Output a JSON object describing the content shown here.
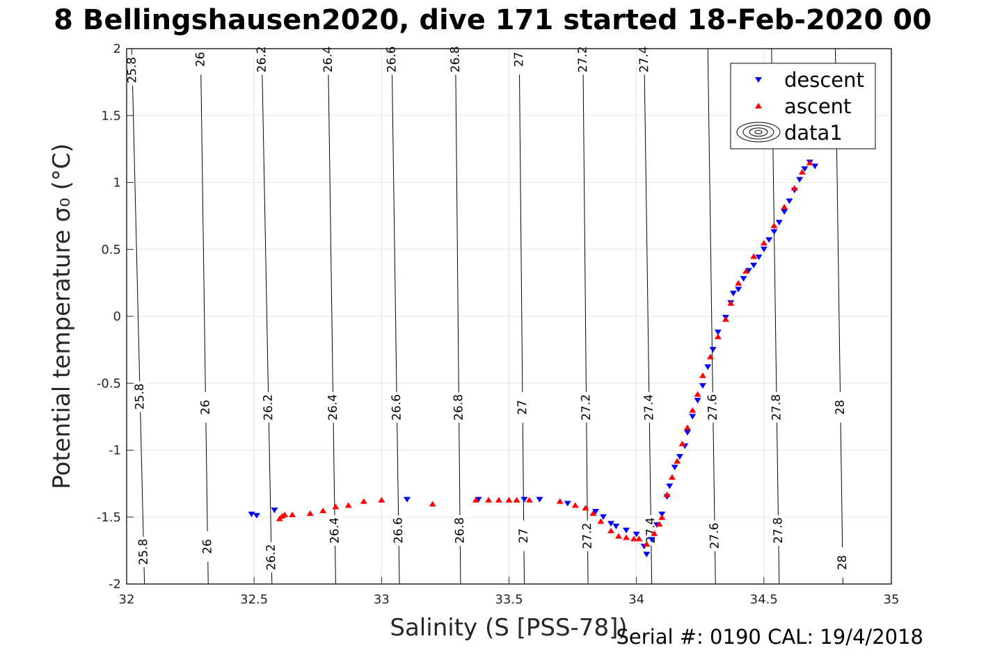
{
  "title": "8 Bellingshausen2020, dive 171 started 18-Feb-2020 00",
  "footer": "Serial #: 0190  CAL: 19/4/2018",
  "colors": {
    "descent": "#0000ff",
    "ascent": "#ff0000",
    "contour": "#000000",
    "grid": "#e6e6e6"
  },
  "chart_data": {
    "type": "scatter",
    "xlabel": "Salinity (S [PSS-78])",
    "ylabel": "Potential temperature σ₀ (°C)",
    "xlim": [
      32,
      35
    ],
    "ylim": [
      -2,
      2
    ],
    "xticks": [
      32,
      32.5,
      33,
      33.5,
      34,
      34.5,
      35
    ],
    "yticks": [
      -2,
      -1.5,
      -1,
      -0.5,
      0,
      0.5,
      1,
      1.5,
      2
    ],
    "xtick_labels": [
      "32",
      "32.5",
      "33",
      "33.5",
      "34",
      "34.5",
      "35"
    ],
    "ytick_labels": [
      "-2",
      "-1.5",
      "-1",
      "-0.5",
      "0",
      "0.5",
      "1",
      "1.5",
      "2"
    ],
    "grid": true,
    "legend_position": "top-right",
    "legend": [
      "descent",
      "ascent",
      "data1"
    ],
    "contours": [
      {
        "level": "25.8",
        "s_at_neg2": 32.07,
        "s_at_2": 32.02
      },
      {
        "level": "26",
        "s_at_neg2": 32.32,
        "s_at_2": 32.29
      },
      {
        "level": "26.2",
        "s_at_neg2": 32.57,
        "s_at_2": 32.53
      },
      {
        "level": "26.4",
        "s_at_neg2": 32.82,
        "s_at_2": 32.79
      },
      {
        "level": "26.6",
        "s_at_neg2": 33.07,
        "s_at_2": 33.04
      },
      {
        "level": "26.8",
        "s_at_neg2": 33.31,
        "s_at_2": 33.29
      },
      {
        "level": "27",
        "s_at_neg2": 33.56,
        "s_at_2": 33.54
      },
      {
        "level": "27.2",
        "s_at_neg2": 33.81,
        "s_at_2": 33.79
      },
      {
        "level": "27.4",
        "s_at_neg2": 34.06,
        "s_at_2": 34.03
      },
      {
        "level": "27.6",
        "s_at_neg2": 34.31,
        "s_at_2": 34.28
      },
      {
        "level": "27.8",
        "s_at_neg2": 34.56,
        "s_at_2": 34.53
      },
      {
        "level": "28",
        "s_at_neg2": 34.81,
        "s_at_2": 34.78
      }
    ],
    "contour_labels": [
      {
        "level": "25.8",
        "at": [
          0.35,
          0.06,
          0.96
        ]
      },
      {
        "level": "26",
        "at": [
          0.33,
          0.07,
          0.98
        ]
      },
      {
        "level": "26.2",
        "at": [
          0.33,
          0.05,
          0.98
        ]
      },
      {
        "level": "26.4",
        "at": [
          0.33,
          0.1,
          0.98
        ]
      },
      {
        "level": "26.6",
        "at": [
          0.33,
          0.1,
          0.98
        ]
      },
      {
        "level": "26.8",
        "at": [
          0.33,
          0.1,
          0.98
        ]
      },
      {
        "level": "27",
        "at": [
          0.33,
          0.09,
          0.98
        ]
      },
      {
        "level": "27.2",
        "at": [
          0.33,
          0.09,
          0.98
        ]
      },
      {
        "level": "27.4",
        "at": [
          0.33,
          0.1,
          0.98
        ]
      },
      {
        "level": "27.6",
        "at": [
          0.33,
          0.09
        ]
      },
      {
        "level": "27.8",
        "at": [
          0.33,
          0.1
        ]
      },
      {
        "level": "28",
        "at": [
          0.33,
          0.04,
          0.9
        ]
      }
    ],
    "series": [
      {
        "name": "descent",
        "marker": "triangle-down",
        "x": [
          32.49,
          32.51,
          32.58,
          33.1,
          33.38,
          33.56,
          33.62,
          33.73,
          33.84,
          33.87,
          33.9,
          33.92,
          33.96,
          34.0,
          34.03,
          34.04,
          34.06,
          34.08,
          34.1,
          34.12,
          34.13,
          34.15,
          34.17,
          34.19,
          34.2,
          34.22,
          34.24,
          34.26,
          34.28,
          34.3,
          34.32,
          34.35,
          34.37,
          34.38,
          34.4,
          34.42,
          34.44,
          34.46,
          34.48,
          34.5,
          34.52,
          34.54,
          34.56,
          34.58,
          34.6,
          34.62,
          34.64,
          34.66,
          34.68,
          34.7
        ],
        "y": [
          -1.48,
          -1.49,
          -1.45,
          -1.37,
          -1.37,
          -1.37,
          -1.37,
          -1.4,
          -1.46,
          -1.5,
          -1.55,
          -1.57,
          -1.6,
          -1.63,
          -1.72,
          -1.78,
          -1.67,
          -1.56,
          -1.48,
          -1.35,
          -1.27,
          -1.13,
          -1.05,
          -0.97,
          -0.87,
          -0.75,
          -0.63,
          -0.52,
          -0.38,
          -0.25,
          -0.12,
          -0.01,
          0.1,
          0.17,
          0.2,
          0.28,
          0.34,
          0.38,
          0.44,
          0.5,
          0.57,
          0.63,
          0.7,
          0.78,
          0.86,
          0.94,
          1.02,
          1.1,
          1.15,
          1.12
        ]
      },
      {
        "name": "ascent",
        "marker": "triangle-up",
        "x": [
          32.6,
          32.61,
          32.62,
          32.65,
          32.72,
          32.77,
          32.82,
          32.87,
          32.93,
          33.0,
          33.2,
          33.37,
          33.42,
          33.46,
          33.5,
          33.53,
          33.58,
          33.7,
          33.76,
          33.8,
          33.83,
          33.86,
          33.9,
          33.93,
          33.96,
          33.99,
          34.01,
          34.04,
          34.07,
          34.09,
          34.1,
          34.12,
          34.14,
          34.16,
          34.18,
          34.2,
          34.22,
          34.24,
          34.26,
          34.29,
          34.32,
          34.35,
          34.37,
          34.4,
          34.43,
          34.46,
          34.5,
          34.54,
          34.58,
          34.62,
          34.65,
          34.68
        ],
        "y": [
          -1.51,
          -1.49,
          -1.48,
          -1.48,
          -1.47,
          -1.45,
          -1.42,
          -1.41,
          -1.38,
          -1.37,
          -1.4,
          -1.37,
          -1.37,
          -1.37,
          -1.37,
          -1.37,
          -1.37,
          -1.38,
          -1.41,
          -1.43,
          -1.47,
          -1.53,
          -1.6,
          -1.64,
          -1.65,
          -1.66,
          -1.66,
          -1.7,
          -1.62,
          -1.55,
          -1.5,
          -1.33,
          -1.2,
          -1.08,
          -0.95,
          -0.83,
          -0.7,
          -0.58,
          -0.44,
          -0.3,
          -0.15,
          -0.02,
          0.1,
          0.25,
          0.34,
          0.45,
          0.55,
          0.68,
          0.82,
          0.96,
          1.08,
          1.15
        ]
      }
    ]
  }
}
